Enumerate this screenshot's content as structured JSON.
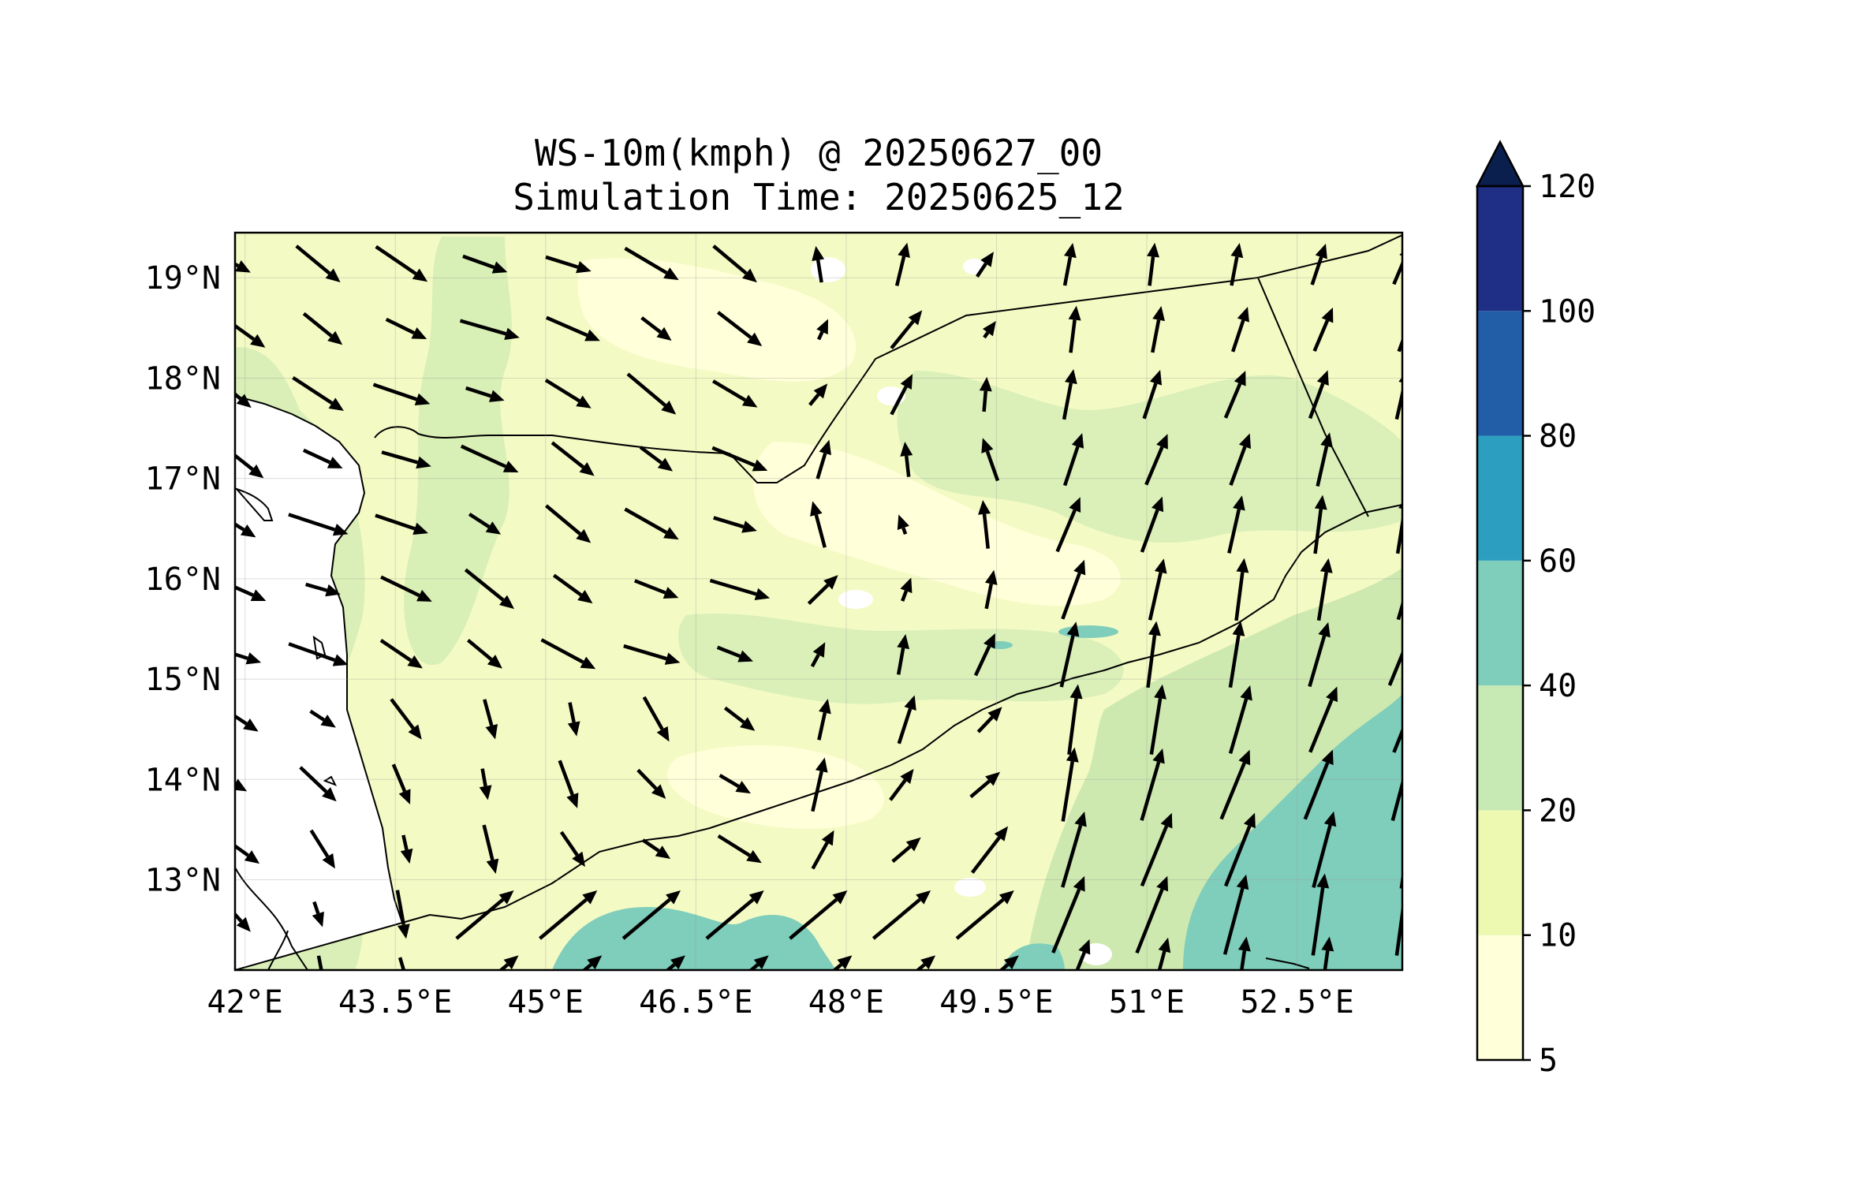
{
  "title_line1": "WS-10m(kmph) @ 20250627_00",
  "title_line2": "Simulation Time: 20250625_12",
  "map": {
    "lon_range": [
      41.9,
      53.55
    ],
    "lat_range": [
      12.1,
      19.45
    ],
    "lon_ticks": [
      {
        "value": 42.0,
        "label": "42°E"
      },
      {
        "value": 43.5,
        "label": "43.5°E"
      },
      {
        "value": 45.0,
        "label": "45°E"
      },
      {
        "value": 46.5,
        "label": "46.5°E"
      },
      {
        "value": 48.0,
        "label": "48°E"
      },
      {
        "value": 49.5,
        "label": "49.5°E"
      },
      {
        "value": 51.0,
        "label": "51°E"
      },
      {
        "value": 52.5,
        "label": "52.5°E"
      }
    ],
    "lat_ticks": [
      {
        "value": 19,
        "label": "19°N"
      },
      {
        "value": 18,
        "label": "18°N"
      },
      {
        "value": 17,
        "label": "17°N"
      },
      {
        "value": 16,
        "label": "16°N"
      },
      {
        "value": 15,
        "label": "15°N"
      },
      {
        "value": 14,
        "label": "14°N"
      },
      {
        "value": 13,
        "label": "13°N"
      }
    ],
    "grid": true
  },
  "colorbar": {
    "levels": [
      5,
      10,
      20,
      40,
      60,
      80,
      100,
      120
    ],
    "labels": [
      "5",
      "10",
      "20",
      "40",
      "60",
      "80",
      "100",
      "120"
    ],
    "colors": [
      "#ffffd9",
      "#edf8b1",
      "#c7e9b4",
      "#7fcdbb",
      "#2c9fc0",
      "#225ea8",
      "#1e2f85"
    ],
    "extend_color": "#0b1f4f",
    "extend": "max"
  },
  "colors": {
    "land_outline": "#000000",
    "arrow": "#000000",
    "ocean": "#ffffff"
  }
}
